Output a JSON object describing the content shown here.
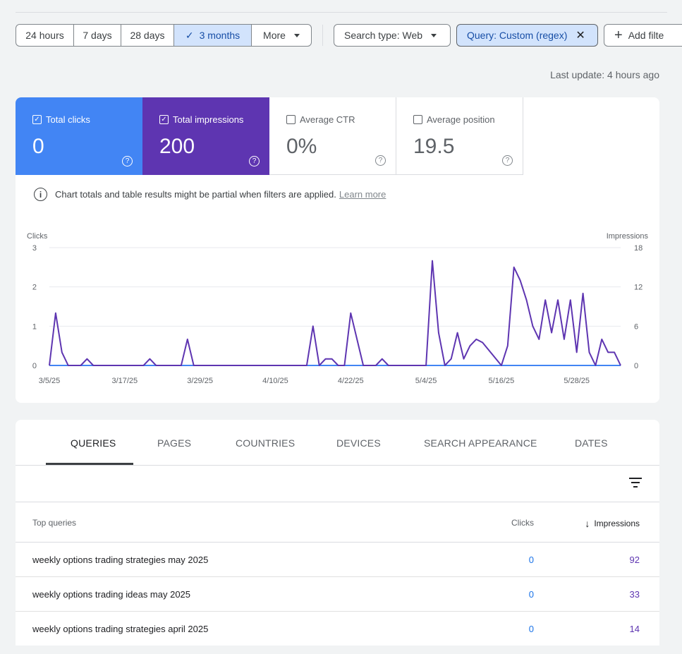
{
  "date_filters": [
    {
      "label": "24 hours",
      "active": false
    },
    {
      "label": "7 days",
      "active": false
    },
    {
      "label": "28 days",
      "active": false
    },
    {
      "label": "3 months",
      "active": true
    },
    {
      "label": "More",
      "active": false
    }
  ],
  "chips": {
    "search_type": "Search type: Web",
    "query": "Query: Custom (regex)",
    "add_filter": "Add filte"
  },
  "last_update": "Last update: 4 hours ago",
  "metrics": {
    "clicks": {
      "label": "Total clicks",
      "value": "0",
      "checked": true
    },
    "impressions": {
      "label": "Total impressions",
      "value": "200",
      "checked": true
    },
    "ctr": {
      "label": "Average CTR",
      "value": "0%",
      "checked": false
    },
    "position": {
      "label": "Average position",
      "value": "19.5",
      "checked": false
    }
  },
  "info": {
    "text": "Chart totals and table results might be partial when filters are applied.",
    "link": "Learn more"
  },
  "colors": {
    "clicks": "#4285f4",
    "impressions": "#5e35b1",
    "grid": "#e8eaed"
  },
  "chart_data": {
    "type": "line",
    "left_axis_label": "Clicks",
    "right_axis_label": "Impressions",
    "left_ylim": [
      0,
      3
    ],
    "left_ticks": [
      0,
      1,
      2,
      3
    ],
    "right_ylim": [
      0,
      18
    ],
    "right_ticks": [
      0,
      6,
      12,
      18
    ],
    "x_tick_labels": [
      "3/5/25",
      "3/17/25",
      "3/29/25",
      "4/10/25",
      "4/22/25",
      "5/4/25",
      "5/16/25",
      "5/28/25"
    ],
    "x_tick_days": [
      0,
      12,
      24,
      36,
      48,
      60,
      72,
      84
    ],
    "grid": true,
    "series": [
      {
        "name": "Clicks",
        "axis": "left",
        "days": [
          0,
          91
        ],
        "values": [
          0,
          0
        ]
      },
      {
        "name": "Impressions",
        "axis": "right",
        "days": [
          0,
          1,
          2,
          3,
          5,
          6,
          7,
          15,
          16,
          17,
          21,
          22,
          23,
          41,
          42,
          43,
          44,
          45,
          46,
          47,
          48,
          49,
          50,
          52,
          53,
          54,
          60,
          61,
          62,
          63,
          64,
          65,
          66,
          67,
          68,
          69,
          72,
          73,
          74,
          75,
          76,
          77,
          78,
          79,
          80,
          81,
          82,
          83,
          84,
          85,
          86,
          87,
          88,
          89,
          90,
          91
        ],
        "values": [
          0,
          8,
          2,
          0,
          0,
          1,
          0,
          0,
          1,
          0,
          0,
          4,
          0,
          0,
          6,
          0,
          1,
          1,
          0,
          0,
          8,
          4,
          0,
          0,
          1,
          0,
          0,
          16,
          5,
          0,
          1,
          5,
          1,
          3,
          4,
          3.5,
          0,
          3,
          15,
          13,
          10,
          6,
          4,
          10,
          5,
          10,
          4,
          10,
          2,
          11,
          2,
          0,
          4,
          2,
          2,
          0
        ]
      }
    ]
  },
  "tabs": [
    "QUERIES",
    "PAGES",
    "COUNTRIES",
    "DEVICES",
    "SEARCH APPEARANCE",
    "DATES"
  ],
  "table": {
    "headers": {
      "query": "Top queries",
      "clicks": "Clicks",
      "impressions": "Impressions"
    },
    "rows": [
      {
        "query": "weekly options trading strategies may 2025",
        "clicks": "0",
        "impressions": "92"
      },
      {
        "query": "weekly options trading ideas may 2025",
        "clicks": "0",
        "impressions": "33"
      },
      {
        "query": "weekly options trading strategies april 2025",
        "clicks": "0",
        "impressions": "14"
      }
    ]
  }
}
